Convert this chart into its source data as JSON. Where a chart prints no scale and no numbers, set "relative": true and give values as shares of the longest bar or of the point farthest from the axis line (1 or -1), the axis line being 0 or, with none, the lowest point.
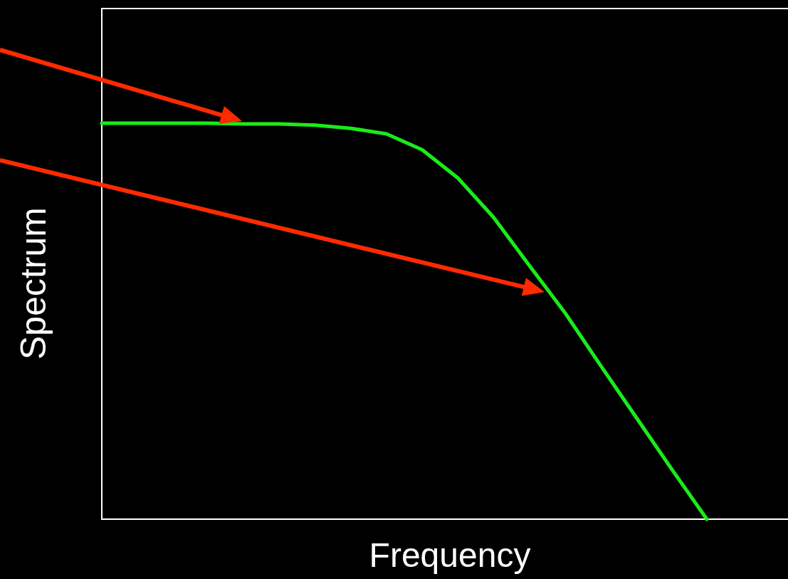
{
  "chart_data": {
    "type": "line",
    "xlabel": "Frequency",
    "ylabel": "Spectrum",
    "relative": true,
    "categories": [
      null,
      null,
      null,
      null,
      null,
      null,
      null,
      null,
      null,
      null,
      null,
      null,
      null,
      null,
      null,
      null,
      null,
      null
    ],
    "series": [
      {
        "color": "#1aeb1a",
        "values": [
          1,
          1,
          1,
          1,
          0.998,
          0.998,
          0.995,
          0.987,
          0.973,
          0.933,
          0.862,
          0.763,
          0.642,
          0.523,
          0.39,
          0.259,
          0.128,
          0
        ]
      }
    ]
  }
}
